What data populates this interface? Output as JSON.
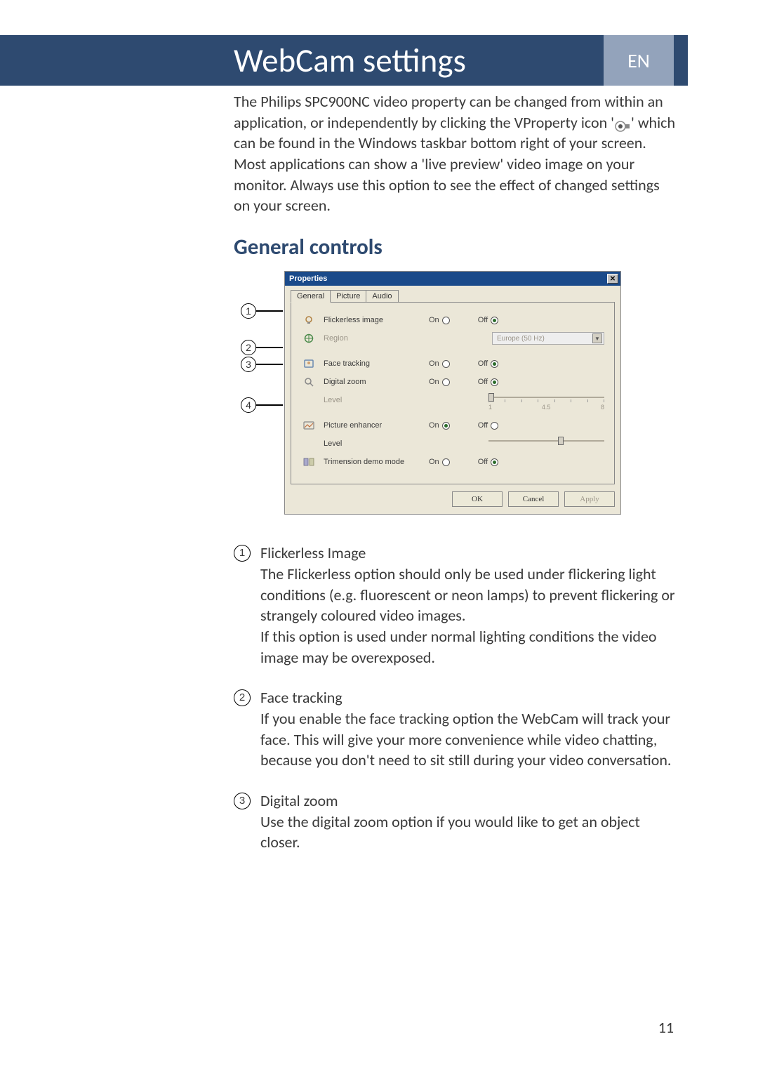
{
  "header": {
    "title": "WebCam settings",
    "lang": "EN"
  },
  "intro": {
    "line1": "The Philips SPC900NC video property can be changed from within an application, or independently by clicking the VProperty icon '",
    "line2": "' which can be found in the Windows taskbar bottom right of your screen. Most applications can show a 'live preview' video image on your monitor. Always use this option to see the effect of changed settings on your screen."
  },
  "section_title": "General controls",
  "callouts": [
    "1",
    "2",
    "3",
    "4"
  ],
  "props": {
    "title": "Properties",
    "tabs": {
      "general": "General",
      "picture": "Picture",
      "audio": "Audio"
    },
    "rows": {
      "flickerless": {
        "label": "Flickerless image",
        "on": "On",
        "off": "Off",
        "selected": "off"
      },
      "region": {
        "label": "Region",
        "value": "Europe (50 Hz)"
      },
      "face": {
        "label": "Face tracking",
        "on": "On",
        "off": "Off",
        "selected": "off"
      },
      "zoom": {
        "label": "Digital zoom",
        "on": "On",
        "off": "Off",
        "selected": "off"
      },
      "zoom_level": {
        "label": "Level",
        "left": "1",
        "mid": "4.5",
        "right": "8",
        "thumb_pct": 0
      },
      "enhancer": {
        "label": "Picture enhancer",
        "on": "On",
        "off": "Off",
        "selected": "on"
      },
      "enh_level": {
        "label": "Level",
        "thumb_pct": 60
      },
      "trimension": {
        "label": "Trimension demo mode",
        "on": "On",
        "off": "Off",
        "selected": "off"
      }
    },
    "buttons": {
      "ok": "OK",
      "cancel": "Cancel",
      "apply": "Apply"
    }
  },
  "defs": [
    {
      "num": "1",
      "title": "Flickerless Image",
      "body": "The Flickerless option should only be used under flickering light conditions (e.g. fluorescent or neon lamps) to prevent flickering or strangely coloured video images.\nIf this option is used under normal lighting conditions the video image may be overexposed."
    },
    {
      "num": "2",
      "title": "Face tracking",
      "body": "If you enable the face tracking option the WebCam will track your face. This will give your more convenience while video chatting, because you don't need to sit still during your video conversation."
    },
    {
      "num": "3",
      "title": "Digital zoom",
      "body": "Use the digital zoom option if you would like to get an object closer."
    }
  ],
  "page_number": "11",
  "colors": {
    "header_bg": "#2e4a70",
    "lang_bg": "#93a3bb",
    "text": "#3a3a3a",
    "panel_bg": "#ebe7d8",
    "dim": "#9a9488"
  }
}
